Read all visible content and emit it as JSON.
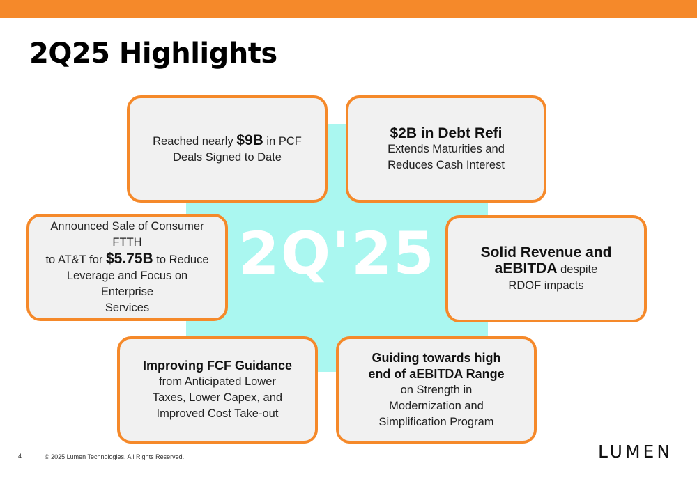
{
  "slide": {
    "title": "2Q25 Highlights",
    "center_label": "2Q'25",
    "accent_color": "#f5892a",
    "center_color": "#aaf7f0"
  },
  "cards": [
    {
      "pre": "Reached nearly ",
      "bold": "$9B",
      "post": " in PCF",
      "line2": "Deals Signed to Date"
    },
    {
      "bold": "$2B in Debt Refi",
      "line2": "Extends Maturities and",
      "line3": "Reduces Cash Interest"
    },
    {
      "line1": "Announced Sale of Consumer FTTH",
      "pre": "to AT&T for ",
      "bold": "$5.75B",
      "post": " to Reduce",
      "line3": "Leverage and Focus on Enterprise",
      "line4": "Services"
    },
    {
      "bold1": "Solid Revenue and",
      "bold2": "aEBITDA",
      "post": " despite",
      "line3": "RDOF impacts"
    },
    {
      "bold": "Improving FCF Guidance",
      "line2": "from Anticipated Lower",
      "line3": "Taxes, Lower Capex, and",
      "line4": "Improved Cost Take-out"
    },
    {
      "bold1": "Guiding towards high",
      "bold2": "end of aEBITDA Range",
      "line3": "on Strength in",
      "line4": "Modernization and",
      "line5": "Simplification Program"
    }
  ],
  "footer": {
    "page_number": "4",
    "copyright": "© 2025 Lumen Technologies. All Rights Reserved.",
    "logo_text": "LUMEN"
  }
}
